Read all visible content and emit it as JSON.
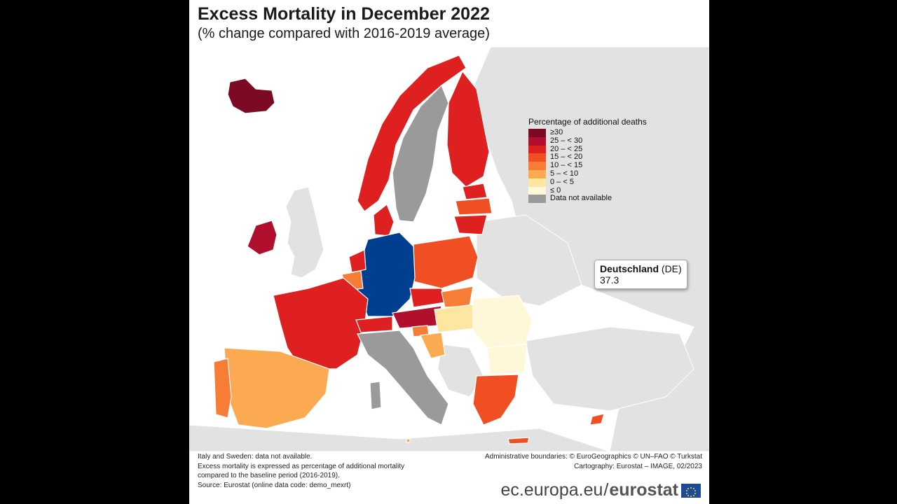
{
  "title": "Excess Mortality in December 2022",
  "subtitle": "(% change compared with 2016-2019 average)",
  "legend": {
    "title": "Percentage of additional deaths",
    "items": [
      {
        "label": "≥30",
        "color": "#7d0a25"
      },
      {
        "label": "25 – < 30",
        "color": "#b0102e"
      },
      {
        "label": "20 – < 25",
        "color": "#de2020"
      },
      {
        "label": "15 – < 20",
        "color": "#ef4f22"
      },
      {
        "label": "10 – < 15",
        "color": "#f77c36"
      },
      {
        "label": "5 – < 10",
        "color": "#fbaa52"
      },
      {
        "label": "0 – < 5",
        "color": "#fde6a0"
      },
      {
        "label": "≤ 0",
        "color": "#fef7d8"
      },
      {
        "label": "Data not available",
        "color": "#9a9a9a"
      }
    ]
  },
  "tooltip": {
    "country": "Deutschland",
    "code": "(DE)",
    "value": "37.3"
  },
  "highlight_color": "#003f8f",
  "footnotes": {
    "line1": "Italy and Sweden: data not available.",
    "line2": "Excess mortality is expressed as percentage of additional mortality",
    "line3": "compared to the baseline period (2016-2019).",
    "line4": "Source: Eurostat (online data code: demo_mexrt)"
  },
  "credits": {
    "line1": "Administrative boundaries: © EuroGeographics © UN–FAO © Turkstat",
    "line2": "Cartography: Eurostat – IMAGE, 02/2023"
  },
  "brand": {
    "url": "ec.europa.eu",
    "sep": "/",
    "name": "eurostat"
  }
}
